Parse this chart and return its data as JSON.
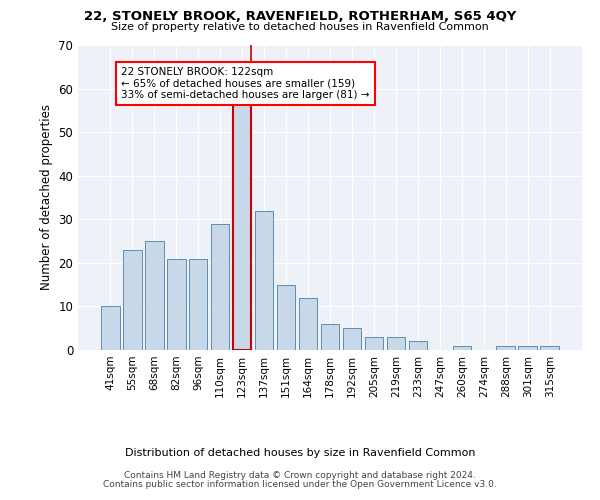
{
  "title": "22, STONELY BROOK, RAVENFIELD, ROTHERHAM, S65 4QY",
  "subtitle": "Size of property relative to detached houses in Ravenfield Common",
  "xlabel": "Distribution of detached houses by size in Ravenfield Common",
  "ylabel": "Number of detached properties",
  "bar_color": "#c8d8e8",
  "bar_edge_color": "#5b8db8",
  "background_color": "#eef2f8",
  "categories": [
    "41sqm",
    "55sqm",
    "68sqm",
    "82sqm",
    "96sqm",
    "110sqm",
    "123sqm",
    "137sqm",
    "151sqm",
    "164sqm",
    "178sqm",
    "192sqm",
    "205sqm",
    "219sqm",
    "233sqm",
    "247sqm",
    "260sqm",
    "274sqm",
    "288sqm",
    "301sqm",
    "315sqm"
  ],
  "values": [
    10,
    23,
    25,
    21,
    21,
    29,
    59,
    32,
    15,
    12,
    6,
    5,
    3,
    3,
    2,
    0,
    1,
    0,
    1,
    1,
    1
  ],
  "highlight_index": 6,
  "highlight_color": "#cc0000",
  "annotation_line1": "22 STONELY BROOK: 122sqm",
  "annotation_line2": "← 65% of detached houses are smaller (159)",
  "annotation_line3": "33% of semi-detached houses are larger (81) →",
  "ylim": [
    0,
    70
  ],
  "yticks": [
    0,
    10,
    20,
    30,
    40,
    50,
    60,
    70
  ],
  "footer_line1": "Contains HM Land Registry data © Crown copyright and database right 2024.",
  "footer_line2": "Contains public sector information licensed under the Open Government Licence v3.0."
}
